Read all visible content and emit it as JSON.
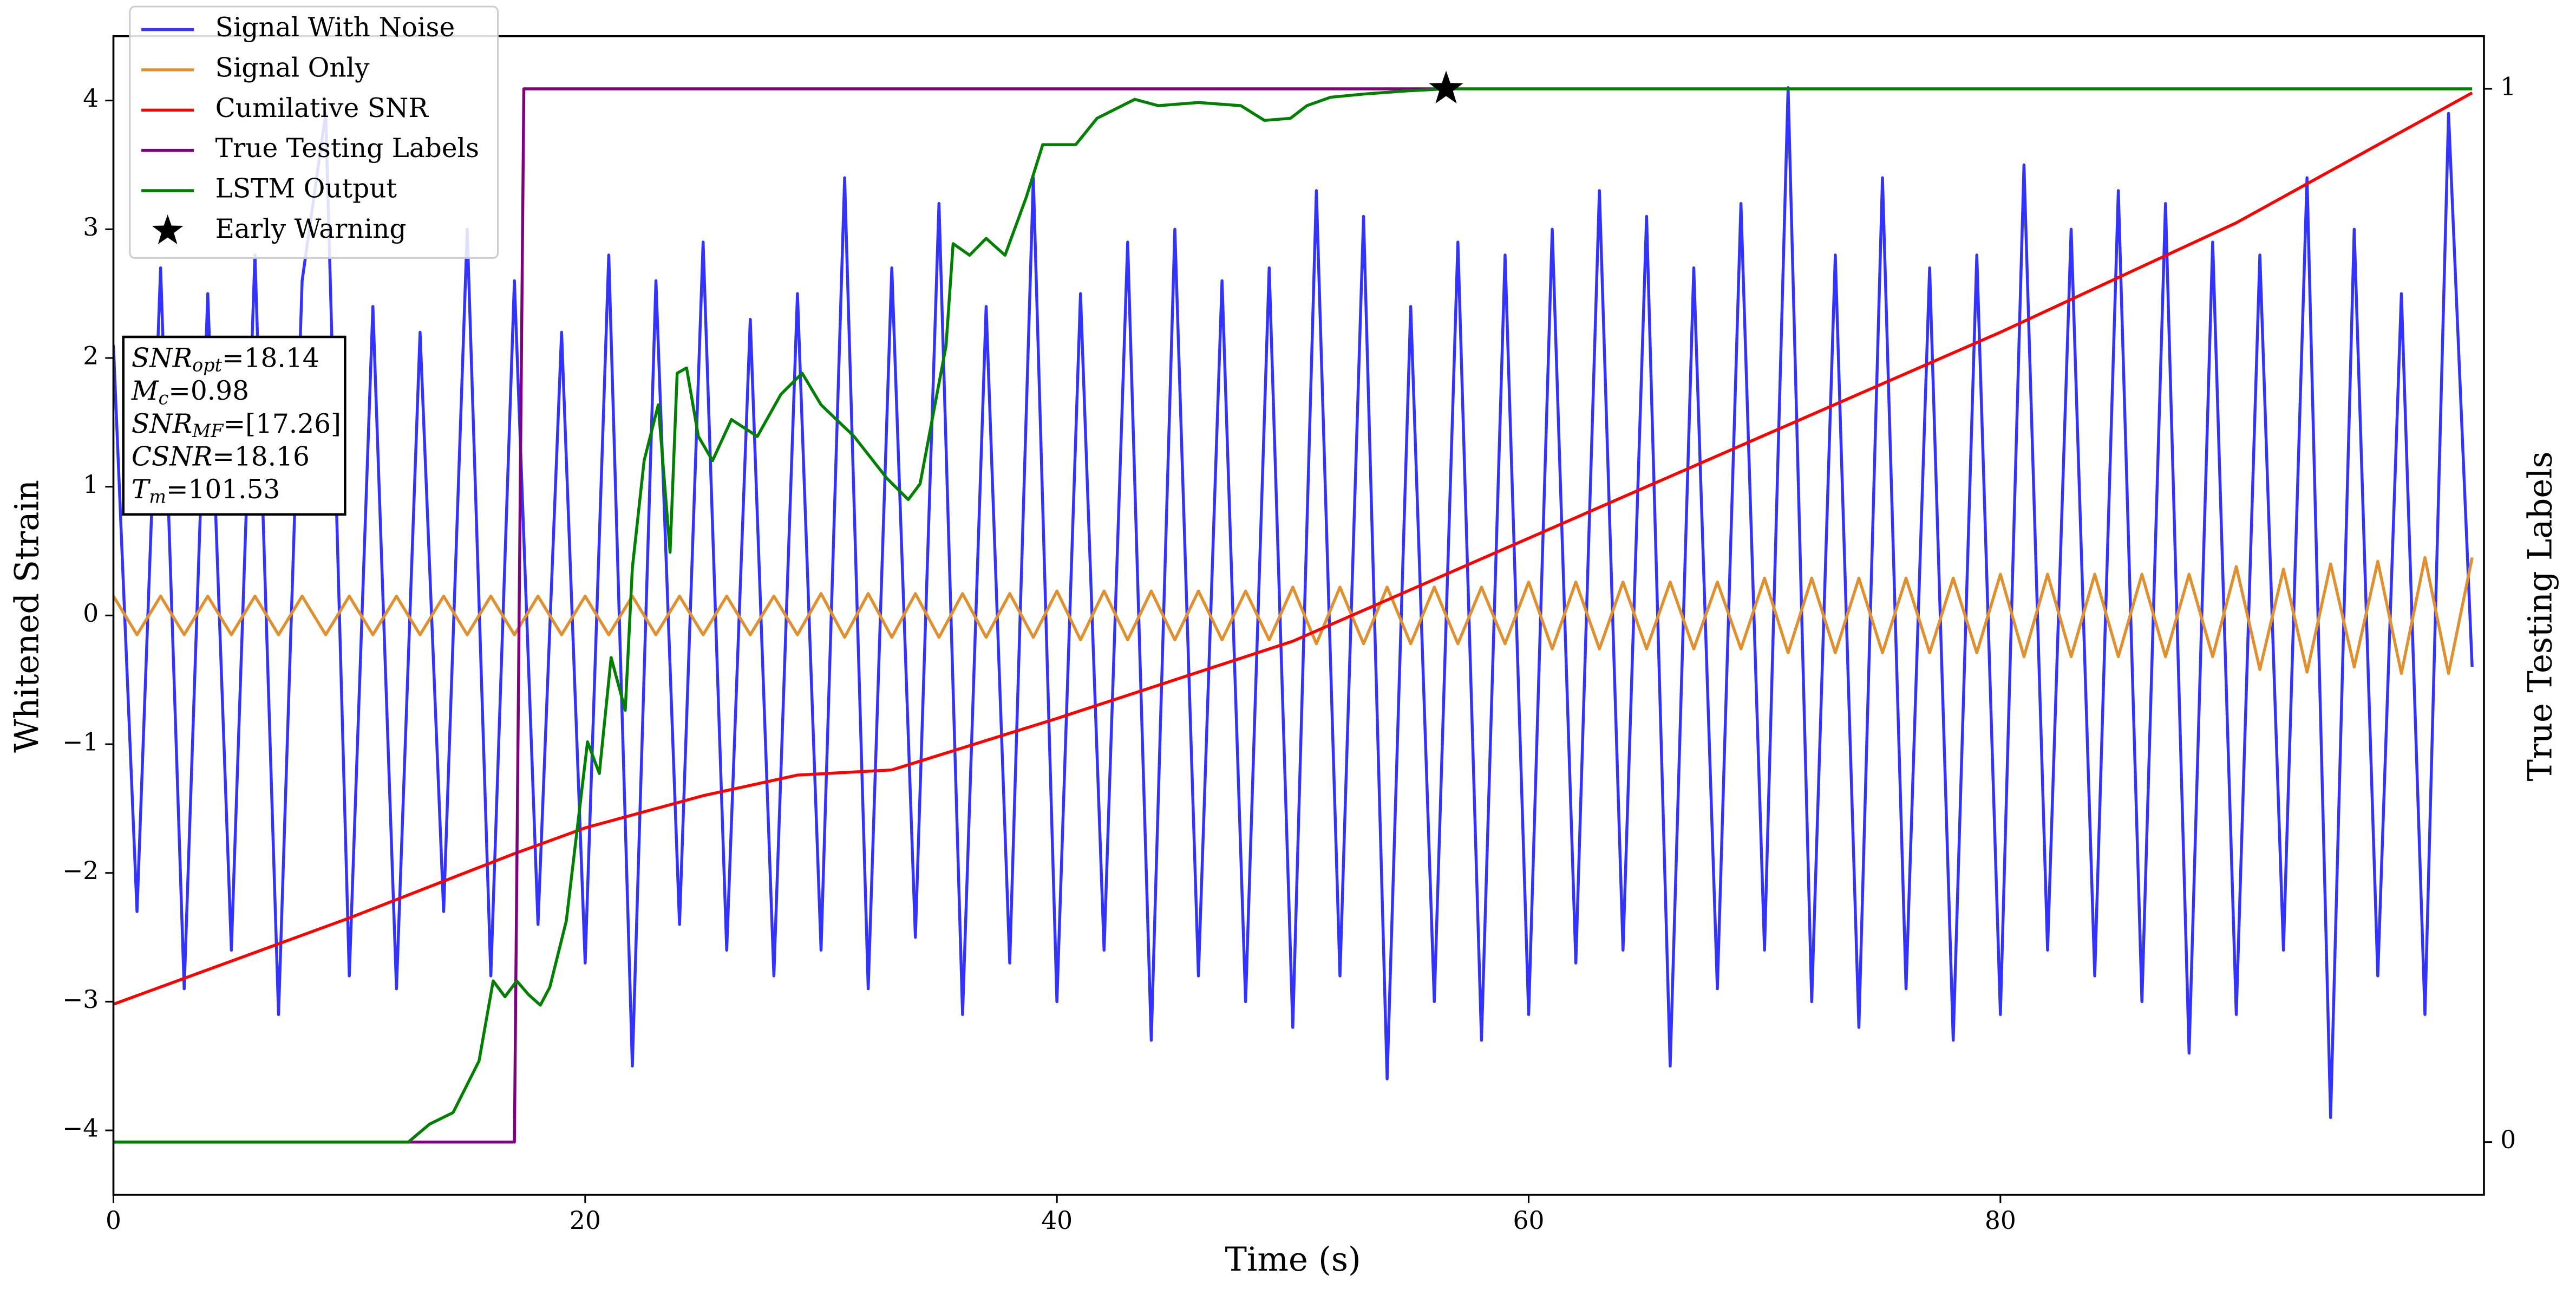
{
  "chart_data": {
    "type": "line",
    "xlabel": "Time (s)",
    "ylabel": "Whitened Strain",
    "y2label": "True Testing Labels",
    "xlim": [
      0,
      100.5
    ],
    "xticks": [
      0,
      20,
      40,
      60,
      80
    ],
    "ylim": [
      -4.5,
      4.5
    ],
    "yticks": [
      {
        "value": -4,
        "label": "−4"
      },
      {
        "value": -3,
        "label": "−3"
      },
      {
        "value": -2,
        "label": "−2"
      },
      {
        "value": -1,
        "label": "−1"
      },
      0,
      1,
      2,
      3,
      4
    ],
    "y2lim": [
      -0.05,
      1.05
    ],
    "y2ticks": [
      0,
      1
    ],
    "legend": "upper left",
    "series": [
      {
        "name": "Signal With Noise",
        "color": "#3333ff",
        "x": [
          0,
          1,
          2,
          3,
          4,
          5,
          6,
          7,
          8,
          9,
          10,
          11,
          12,
          13,
          14,
          15,
          16,
          17,
          18,
          19,
          20,
          21,
          22,
          23,
          24,
          25,
          26,
          27,
          28,
          29,
          30,
          31,
          32,
          33,
          34,
          35,
          36,
          37,
          38,
          39,
          40,
          41,
          42,
          43,
          44,
          45,
          46,
          47,
          48,
          49,
          50,
          51,
          52,
          53,
          54,
          55,
          56,
          57,
          58,
          59,
          60,
          61,
          62,
          63,
          64,
          65,
          66,
          67,
          68,
          69,
          70,
          71,
          72,
          73,
          74,
          75,
          76,
          77,
          78,
          79,
          80,
          81,
          82,
          83,
          84,
          85,
          86,
          87,
          88,
          89,
          90,
          91,
          92,
          93,
          94,
          95,
          96,
          97,
          98,
          99,
          100
        ],
        "values": [
          2.1,
          -2.3,
          2.7,
          -2.9,
          2.5,
          -2.6,
          2.8,
          -3.1,
          2.6,
          3.9,
          -2.8,
          2.4,
          -2.9,
          2.2,
          -2.3,
          3.0,
          -2.8,
          2.6,
          -2.4,
          2.2,
          -2.7,
          2.8,
          -3.5,
          2.6,
          -2.4,
          2.9,
          -2.6,
          2.3,
          -2.8,
          2.5,
          -2.6,
          3.4,
          -2.9,
          2.7,
          -2.5,
          3.2,
          -3.1,
          2.4,
          -2.7,
          3.4,
          -3.0,
          2.5,
          -2.6,
          2.9,
          -3.3,
          3.0,
          -2.8,
          2.6,
          -3.0,
          2.7,
          -3.2,
          3.3,
          -2.8,
          3.1,
          -3.6,
          2.4,
          -3.0,
          2.9,
          -3.3,
          2.8,
          -3.1,
          3.0,
          -2.7,
          3.3,
          -2.6,
          3.1,
          -3.5,
          2.7,
          -2.9,
          3.2,
          -2.6,
          4.1,
          -3.0,
          2.8,
          -3.2,
          3.4,
          -2.9,
          2.7,
          -3.3,
          2.8,
          -3.1,
          3.5,
          -2.6,
          3.0,
          -2.8,
          3.3,
          -3.0,
          3.2,
          -3.4,
          2.9,
          -3.1,
          2.8,
          -2.6,
          3.4,
          -3.9,
          3.0,
          -2.8,
          2.5,
          -3.1,
          3.9,
          -0.4
        ]
      },
      {
        "name": "Signal Only",
        "color": "#e0902e",
        "x": [
          0,
          1,
          2,
          3,
          4,
          5,
          6,
          7,
          8,
          9,
          10,
          11,
          12,
          13,
          14,
          15,
          16,
          17,
          18,
          19,
          20,
          21,
          22,
          23,
          24,
          25,
          26,
          27,
          28,
          29,
          30,
          31,
          32,
          33,
          34,
          35,
          36,
          37,
          38,
          39,
          40,
          41,
          42,
          43,
          44,
          45,
          46,
          47,
          48,
          49,
          50,
          51,
          52,
          53,
          54,
          55,
          56,
          57,
          58,
          59,
          60,
          61,
          62,
          63,
          64,
          65,
          66,
          67,
          68,
          69,
          70,
          71,
          72,
          73,
          74,
          75,
          76,
          77,
          78,
          79,
          80,
          81,
          82,
          83,
          84,
          85,
          86,
          87,
          88,
          89,
          90,
          91,
          92,
          93,
          94,
          95,
          96,
          97,
          98,
          99,
          100
        ],
        "values": [
          0.15,
          -0.15,
          0.15,
          -0.15,
          0.15,
          -0.15,
          0.15,
          -0.15,
          0.15,
          -0.15,
          0.15,
          -0.15,
          0.15,
          -0.15,
          0.15,
          -0.15,
          0.15,
          -0.15,
          0.15,
          -0.15,
          0.15,
          -0.15,
          0.15,
          -0.15,
          0.15,
          -0.15,
          0.15,
          -0.15,
          0.15,
          -0.15,
          0.17,
          -0.17,
          0.17,
          -0.17,
          0.17,
          -0.17,
          0.17,
          -0.17,
          0.17,
          -0.17,
          0.19,
          -0.19,
          0.19,
          -0.19,
          0.19,
          -0.19,
          0.19,
          -0.19,
          0.19,
          -0.19,
          0.22,
          -0.22,
          0.22,
          -0.22,
          0.22,
          -0.22,
          0.22,
          -0.22,
          0.22,
          -0.22,
          0.26,
          -0.26,
          0.26,
          -0.26,
          0.26,
          -0.26,
          0.26,
          -0.26,
          0.26,
          -0.26,
          0.29,
          -0.29,
          0.29,
          -0.29,
          0.29,
          -0.29,
          0.29,
          -0.29,
          0.29,
          -0.29,
          0.32,
          -0.32,
          0.32,
          -0.32,
          0.32,
          -0.32,
          0.32,
          -0.32,
          0.32,
          -0.32,
          0.38,
          -0.42,
          0.36,
          -0.44,
          0.4,
          -0.4,
          0.42,
          -0.45,
          0.45,
          -0.45,
          0.45
        ]
      },
      {
        "name": "Cumilative SNR",
        "color": "#ff0000",
        "x": [
          0,
          10,
          17,
          20,
          25,
          29,
          33,
          40,
          50,
          55,
          60,
          70,
          80,
          90,
          100
        ],
        "values": [
          -3.02,
          -2.35,
          -1.85,
          -1.65,
          -1.4,
          -1.24,
          -1.2,
          -0.8,
          -0.2,
          0.2,
          0.6,
          1.4,
          2.2,
          3.05,
          4.06
        ]
      },
      {
        "name": "True Testing Labels",
        "color": "#800080",
        "axis": "y2",
        "x": [
          0,
          17,
          17.4,
          56.5
        ],
        "values": [
          0,
          0,
          1,
          1
        ]
      },
      {
        "name": "LSTM Output",
        "color": "#008000",
        "axis": "y2",
        "x": [
          0,
          12.5,
          13.4,
          14.4,
          15.5,
          16.1,
          16.6,
          17.1,
          17.6,
          18.1,
          18.5,
          19.2,
          20.1,
          20.6,
          21.1,
          21.7,
          22,
          22.5,
          23.1,
          23.6,
          23.9,
          24.3,
          24.8,
          25.4,
          26.2,
          27.3,
          28.3,
          29.2,
          30,
          31.4,
          32.8,
          33.7,
          34.2,
          35.3,
          35.6,
          36.3,
          37,
          37.8,
          38.7,
          39.4,
          40.8,
          41.7,
          43.3,
          44.3,
          46,
          47.8,
          48.8,
          49.9,
          50.6,
          51.6,
          53,
          54.8,
          56.5,
          100
        ],
        "values": [
          0,
          0,
          0.017,
          0.028,
          0.077,
          0.153,
          0.138,
          0.153,
          0.14,
          0.13,
          0.147,
          0.21,
          0.38,
          0.35,
          0.46,
          0.41,
          0.545,
          0.647,
          0.7,
          0.56,
          0.73,
          0.735,
          0.67,
          0.647,
          0.686,
          0.67,
          0.71,
          0.73,
          0.7,
          0.67,
          0.63,
          0.61,
          0.625,
          0.756,
          0.853,
          0.842,
          0.858,
          0.842,
          0.897,
          0.947,
          0.947,
          0.972,
          0.99,
          0.984,
          0.987,
          0.984,
          0.97,
          0.972,
          0.984,
          0.992,
          0.995,
          0.998,
          1,
          1
        ]
      },
      {
        "name": "Early Warning",
        "color": "#000000",
        "axis": "y2",
        "marker": "star",
        "x": [
          56.5
        ],
        "values": [
          1
        ]
      }
    ],
    "annotation": [
      {
        "main": "SNR",
        "sub": "opt",
        "rest": "=18.14"
      },
      {
        "main": "M",
        "sub": "c",
        "rest": "=0.98"
      },
      {
        "main": "SNR",
        "sub": "MF",
        "rest": "=[17.26]"
      },
      {
        "main": "CSNR",
        "sub": null,
        "rest": "=18.16"
      },
      {
        "main": "T",
        "sub": "m",
        "rest": "=101.53"
      }
    ]
  }
}
